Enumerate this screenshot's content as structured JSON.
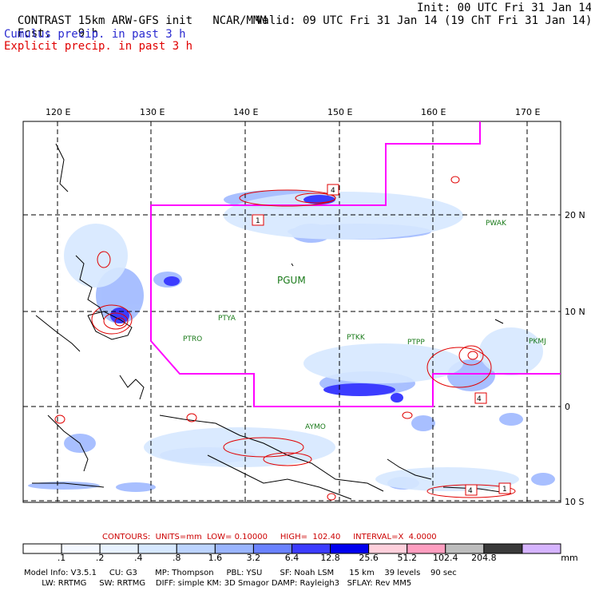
{
  "header": {
    "model": "CONTRAST 15km ARW-GFS init",
    "org": "NCAR/MMM",
    "init": "Init: 00 UTC Fri 31 Jan 14",
    "fcst_label": "Fcst:",
    "fcst_value": "9 h",
    "valid": "Valid: 09 UTC Fri 31 Jan 14 (19 ChT Fri 31 Jan 14)",
    "cumulus": "Cumulus precip. in past 3 h",
    "explicit": "Explicit precip. in past 3 h"
  },
  "colors": {
    "cumulus": "#2a2ad0",
    "explicit": "#e00000",
    "boundary": "#ff00ff",
    "station": "#1a7a1a"
  },
  "map": {
    "lon_labels": [
      "120 E",
      "130 E",
      "140 E",
      "150 E",
      "160 E",
      "170 E"
    ],
    "lat_labels": [
      "20 N",
      "10 N",
      "0",
      "10 S"
    ],
    "stations": [
      "PWAK",
      "PGUM",
      "PTYA",
      "PTRO",
      "PTKK",
      "PTPP",
      "PKMJ",
      "AYMO"
    ],
    "contour_value_labels": [
      "4",
      "1",
      "4",
      "1",
      "4"
    ]
  },
  "contours_info": {
    "text": "CONTOURS:  UNITS=mm  LOW= 0.10000     HIGH=  102.40     INTERVAL=X  4.0000"
  },
  "colorbar": {
    "labels": [
      ".1",
      ".2",
      ".4",
      ".8",
      "1.6",
      "3.2",
      "6.4",
      "12.8",
      "25.6",
      "51.2",
      "102.4",
      "204.8"
    ],
    "unit": "mm",
    "colors": [
      "#ffffff",
      "#f4f8ff",
      "#e8f2ff",
      "#d6e8ff",
      "#bcd4ff",
      "#9ab5ff",
      "#6a82ff",
      "#3c3cff",
      "#0000ee",
      "#ffd0dc",
      "#ff9ec0",
      "#bdbdbd",
      "#3a3a3a",
      "#d6b4ff"
    ]
  },
  "footer": {
    "line1": "Model Info: V3.5.1     CU: G3       MP: Thompson     PBL: YSU       SF: Noah LSM      15 km    39 levels    90 sec",
    "line2": "       LW: RRTMG     SW: RRTMG    DIFF: simple KM: 3D Smagor DAMP: Rayleigh3   SFLAY: Rev MM5"
  }
}
